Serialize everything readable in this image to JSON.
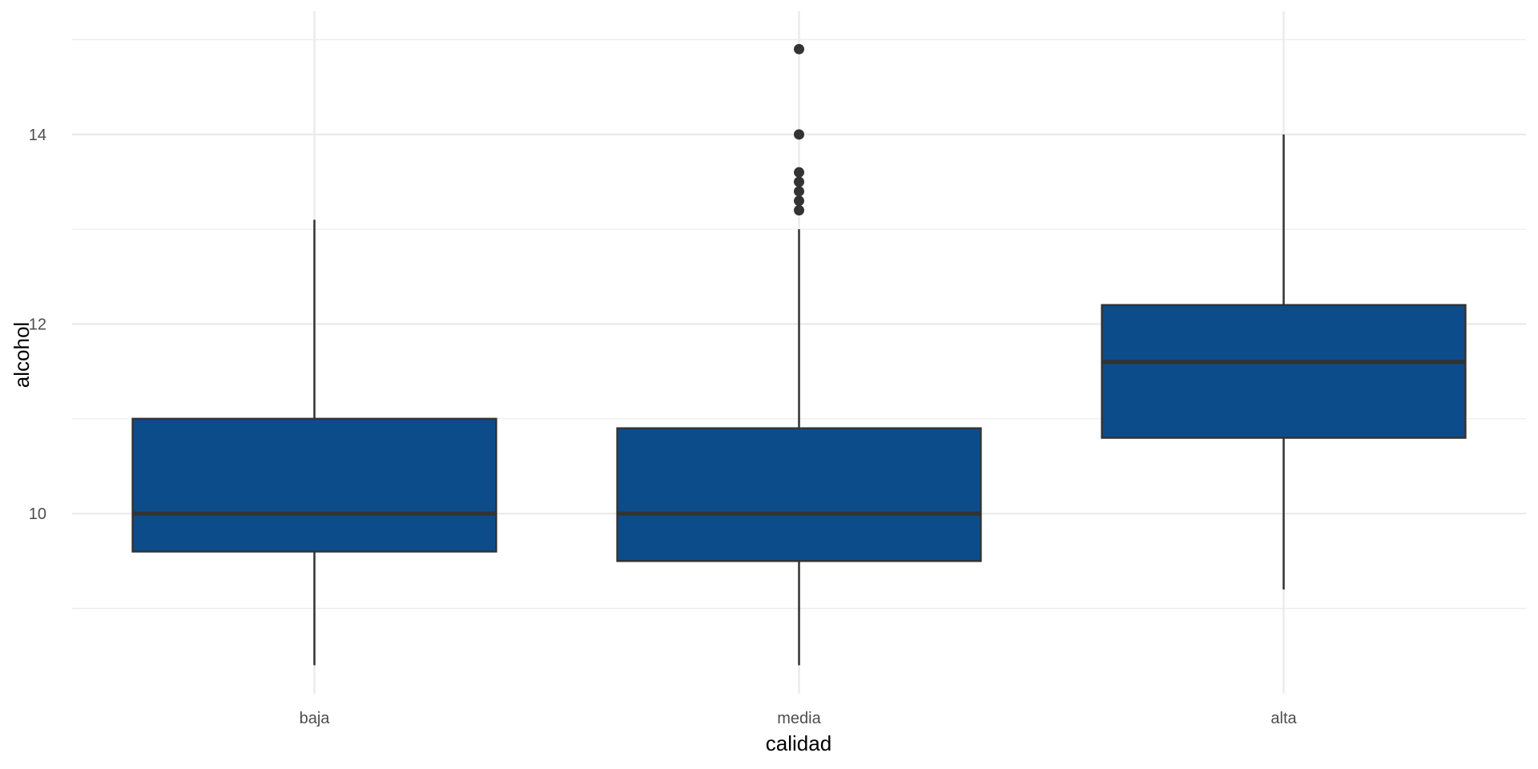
{
  "chart_data": {
    "type": "boxplot",
    "title": "",
    "xlabel": "calidad",
    "ylabel": "alcohol",
    "categories": [
      "baja",
      "media",
      "alta"
    ],
    "ylim": [
      8.1,
      15.3
    ],
    "yticks": [
      10,
      12,
      14
    ],
    "grid": true,
    "box_color": "#0D4C8B",
    "line_color": "#333333",
    "grid_color": "#EBEBEB",
    "boxes": [
      {
        "category": "baja",
        "whisker_low": 8.4,
        "q1": 9.6,
        "median": 10.0,
        "q3": 11.0,
        "whisker_high": 13.1,
        "outliers": []
      },
      {
        "category": "media",
        "whisker_low": 8.4,
        "q1": 9.5,
        "median": 10.0,
        "q3": 10.9,
        "whisker_high": 13.0,
        "outliers": [
          13.2,
          13.3,
          13.4,
          13.5,
          13.6,
          14.0,
          14.9
        ]
      },
      {
        "category": "alta",
        "whisker_low": 9.2,
        "q1": 10.8,
        "median": 11.6,
        "q3": 12.2,
        "whisker_high": 14.0,
        "outliers": []
      }
    ]
  }
}
